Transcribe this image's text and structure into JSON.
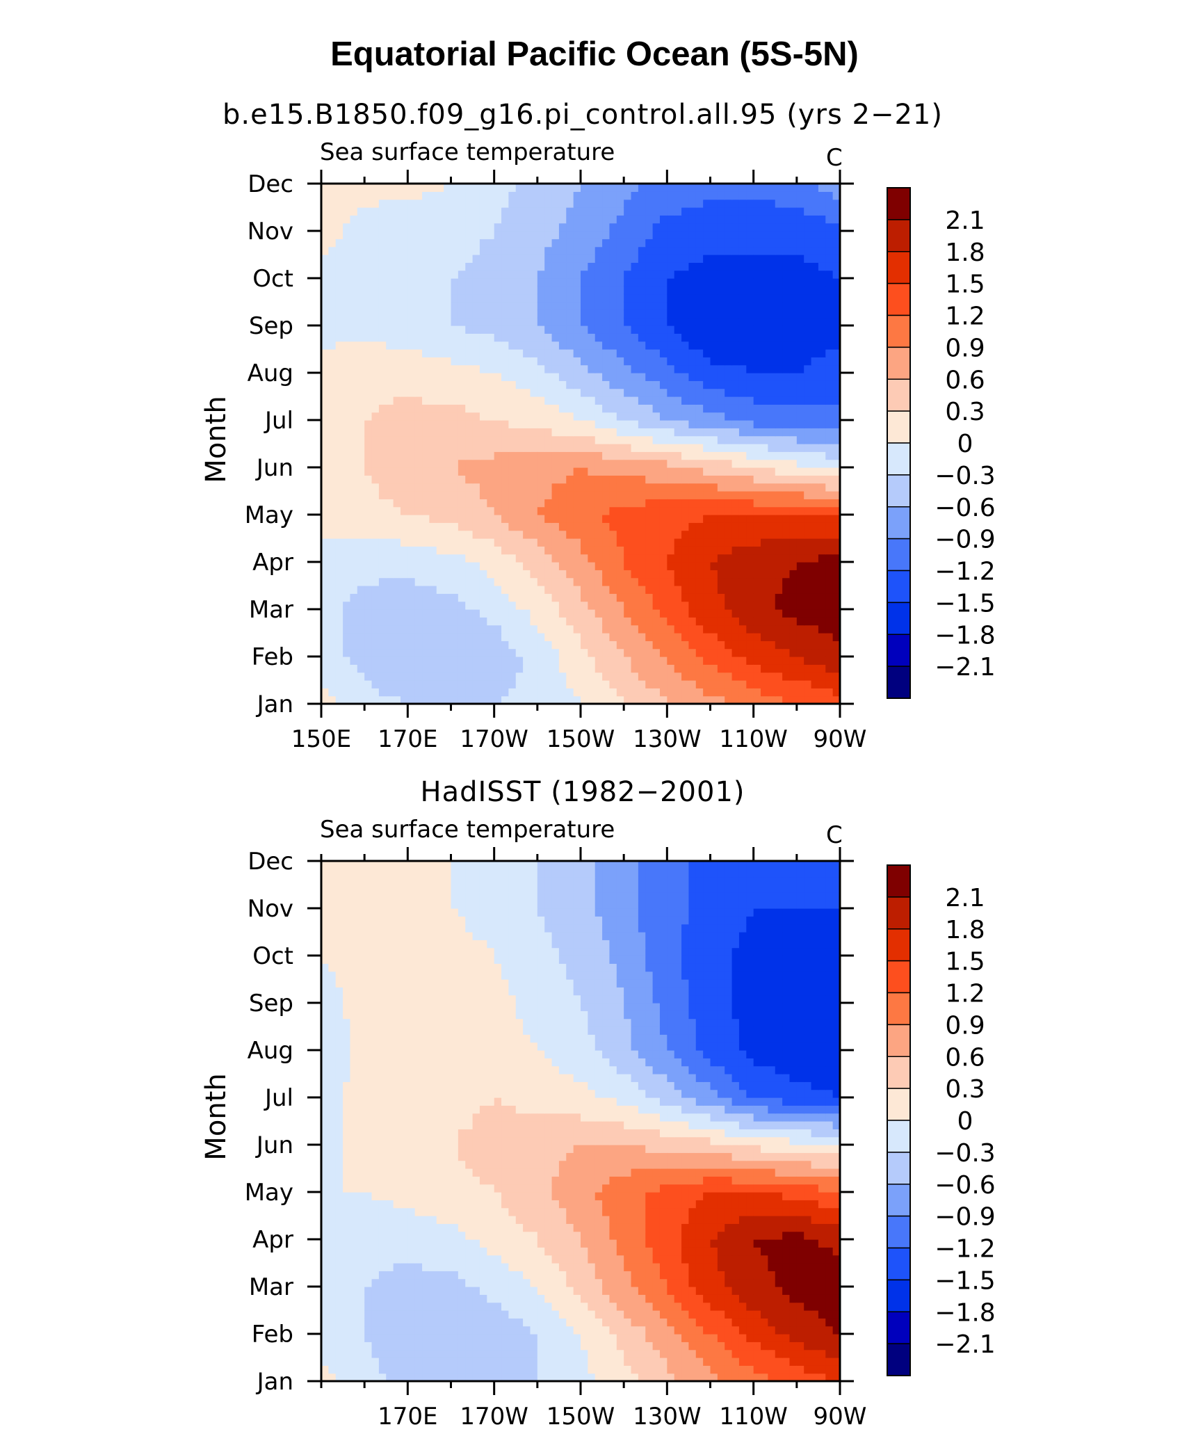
{
  "title": "Equatorial Pacific Ocean (5S-5N)",
  "colors": [
    "#00007f",
    "#0000bd",
    "#0032e9",
    "#1e53fa",
    "#4877fa",
    "#7ba1fa",
    "#b5cbfb",
    "#d7e8fc",
    "#fde8d6",
    "#fdcbb5",
    "#fca582",
    "#fd7843",
    "#fd4f1e",
    "#e32f00",
    "#bd1e00",
    "#7f0000"
  ],
  "colorbar": {
    "labels": [
      "2.1",
      "1.8",
      "1.5",
      "1.2",
      "0.9",
      "0.6",
      "0.3",
      "0",
      "−0.3",
      "−0.6",
      "−0.9",
      "−1.2",
      "−1.5",
      "−1.8",
      "−2.1"
    ]
  },
  "panels": [
    {
      "title": "b.e15.B1850.f09_g16.pi_control.all.95 (yrs 2−21)",
      "var_label": "Sea surface temperature",
      "units": "C",
      "ylabel": "Month",
      "months": [
        "Jan",
        "Feb",
        "Mar",
        "Apr",
        "May",
        "Jun",
        "Jul",
        "Aug",
        "Sep",
        "Oct",
        "Nov",
        "Dec"
      ],
      "lon_labels": [
        "150E",
        "170E",
        "170W",
        "150W",
        "130W",
        "110W",
        "90W"
      ]
    },
    {
      "title": "HadISST (1982−2001)",
      "var_label": "Sea surface temperature",
      "units": "C",
      "ylabel": "Month",
      "months": [
        "Jan",
        "Feb",
        "Mar",
        "Apr",
        "May",
        "Jun",
        "Jul",
        "Aug",
        "Sep",
        "Oct",
        "Nov",
        "Dec"
      ],
      "lon_labels": [
        "170E",
        "170W",
        "150W",
        "130W",
        "110W",
        "90W"
      ]
    }
  ],
  "chart_data": [
    {
      "type": "heatmap",
      "title": "b.e15.B1850.f09_g16.pi_control.all.95 (yrs 2−21)",
      "subtitle": "Sea surface temperature",
      "units": "C",
      "ylabel": "Month",
      "y": [
        "Jan",
        "Feb",
        "Mar",
        "Apr",
        "May",
        "Jun",
        "Jul",
        "Aug",
        "Sep",
        "Oct",
        "Nov",
        "Dec"
      ],
      "x": [
        150,
        160,
        170,
        180,
        190,
        200,
        210,
        220,
        230,
        240,
        250,
        260,
        270
      ],
      "x_ticklabels": [
        "150E",
        "170E",
        "170W",
        "150W",
        "130W",
        "110W",
        "90W"
      ],
      "xlim": [
        150,
        270
      ],
      "levels": [
        -2.1,
        -1.8,
        -1.5,
        -1.2,
        -0.9,
        -0.6,
        -0.3,
        0,
        0.3,
        0.6,
        0.9,
        1.2,
        1.5,
        1.8,
        2.1
      ],
      "z": [
        [
          0.1,
          -0.2,
          -0.3,
          -0.3,
          -0.3,
          -0.2,
          0.0,
          0.3,
          0.6,
          0.8,
          1.0,
          1.2,
          1.4
        ],
        [
          -0.2,
          -0.4,
          -0.6,
          -0.6,
          -0.5,
          -0.2,
          0.2,
          0.6,
          0.9,
          1.3,
          1.6,
          1.8,
          2.0
        ],
        [
          -0.2,
          -0.4,
          -0.5,
          -0.4,
          -0.2,
          0.1,
          0.5,
          0.9,
          1.3,
          1.7,
          2.0,
          2.2,
          2.3
        ],
        [
          -0.1,
          -0.2,
          -0.2,
          -0.1,
          0.1,
          0.4,
          0.8,
          1.2,
          1.5,
          1.8,
          2.0,
          2.1,
          2.2
        ],
        [
          0.1,
          0.2,
          0.3,
          0.4,
          0.6,
          0.9,
          1.1,
          1.3,
          1.4,
          1.5,
          1.5,
          1.5,
          1.5
        ],
        [
          0.1,
          0.3,
          0.5,
          0.6,
          0.7,
          0.8,
          0.9,
          0.8,
          0.7,
          0.5,
          0.3,
          0.1,
          -0.1
        ],
        [
          0.1,
          0.3,
          0.4,
          0.4,
          0.3,
          0.2,
          0.0,
          -0.3,
          -0.6,
          -0.8,
          -1.0,
          -1.1,
          -1.1
        ],
        [
          0.1,
          0.2,
          0.2,
          0.1,
          0.0,
          -0.2,
          -0.5,
          -0.8,
          -1.1,
          -1.4,
          -1.5,
          -1.5,
          -1.4
        ],
        [
          -0.1,
          -0.1,
          -0.2,
          -0.3,
          -0.4,
          -0.6,
          -0.9,
          -1.2,
          -1.5,
          -1.8,
          -1.7,
          -1.6,
          -1.6
        ],
        [
          -0.1,
          -0.2,
          -0.2,
          -0.3,
          -0.4,
          -0.6,
          -0.9,
          -1.2,
          -1.5,
          -1.6,
          -1.6,
          -1.6,
          -1.5
        ],
        [
          0.1,
          -0.1,
          -0.2,
          -0.2,
          -0.3,
          -0.5,
          -0.7,
          -1.0,
          -1.3,
          -1.4,
          -1.4,
          -1.4,
          -1.3
        ],
        [
          0.1,
          0.1,
          0.1,
          0.0,
          -0.2,
          -0.4,
          -0.6,
          -0.8,
          -1.0,
          -1.1,
          -1.1,
          -1.0,
          -0.7
        ]
      ]
    },
    {
      "type": "heatmap",
      "title": "HadISST (1982−2001)",
      "subtitle": "Sea surface temperature",
      "units": "C",
      "ylabel": "Month",
      "y": [
        "Jan",
        "Feb",
        "Mar",
        "Apr",
        "May",
        "Jun",
        "Jul",
        "Aug",
        "Sep",
        "Oct",
        "Nov",
        "Dec"
      ],
      "x": [
        150,
        160,
        170,
        180,
        190,
        200,
        210,
        220,
        230,
        240,
        250,
        260,
        270
      ],
      "x_ticklabels": [
        "170E",
        "170W",
        "150W",
        "130W",
        "110W",
        "90W"
      ],
      "xlim": [
        150,
        270
      ],
      "levels": [
        -2.1,
        -1.8,
        -1.5,
        -1.2,
        -0.9,
        -0.6,
        -0.3,
        0,
        0.3,
        0.6,
        0.9,
        1.2,
        1.5,
        1.8,
        2.1
      ],
      "z": [
        [
          0.1,
          -0.2,
          -0.4,
          -0.4,
          -0.4,
          -0.3,
          -0.1,
          0.2,
          0.5,
          0.8,
          1.1,
          1.3,
          1.5
        ],
        [
          -0.1,
          -0.3,
          -0.5,
          -0.6,
          -0.5,
          -0.3,
          0.0,
          0.4,
          0.8,
          1.2,
          1.6,
          1.9,
          2.1
        ],
        [
          -0.1,
          -0.3,
          -0.4,
          -0.4,
          -0.2,
          0.0,
          0.4,
          0.8,
          1.2,
          1.7,
          2.0,
          2.2,
          2.3
        ],
        [
          -0.1,
          -0.2,
          -0.2,
          -0.1,
          0.1,
          0.3,
          0.6,
          1.0,
          1.4,
          1.8,
          2.1,
          2.2,
          2.0
        ],
        [
          0.0,
          0.0,
          0.1,
          0.2,
          0.3,
          0.5,
          0.8,
          1.1,
          1.3,
          1.5,
          1.5,
          1.4,
          1.2
        ],
        [
          -0.1,
          0.1,
          0.2,
          0.3,
          0.4,
          0.5,
          0.6,
          0.6,
          0.5,
          0.4,
          0.2,
          0.1,
          0.0
        ],
        [
          -0.1,
          0.1,
          0.2,
          0.2,
          0.3,
          0.2,
          0.1,
          -0.1,
          -0.4,
          -0.8,
          -1.2,
          -1.4,
          -1.5
        ],
        [
          -0.2,
          0.1,
          0.2,
          0.2,
          0.1,
          0.0,
          -0.2,
          -0.5,
          -0.9,
          -1.3,
          -1.6,
          -1.7,
          -1.8
        ],
        [
          -0.1,
          0.1,
          0.2,
          0.3,
          0.1,
          -0.1,
          -0.3,
          -0.6,
          -1.0,
          -1.4,
          -1.6,
          -1.7,
          -1.8
        ],
        [
          0.0,
          0.1,
          0.1,
          0.1,
          0.0,
          -0.2,
          -0.4,
          -0.7,
          -1.1,
          -1.4,
          -1.6,
          -1.7,
          -1.7
        ],
        [
          0.1,
          0.1,
          0.1,
          0.0,
          -0.1,
          -0.3,
          -0.5,
          -0.8,
          -1.1,
          -1.3,
          -1.5,
          -1.5,
          -1.5
        ],
        [
          0.1,
          0.1,
          0.1,
          0.0,
          -0.1,
          -0.3,
          -0.5,
          -0.8,
          -1.1,
          -1.3,
          -1.4,
          -1.4,
          -1.3
        ]
      ]
    }
  ]
}
